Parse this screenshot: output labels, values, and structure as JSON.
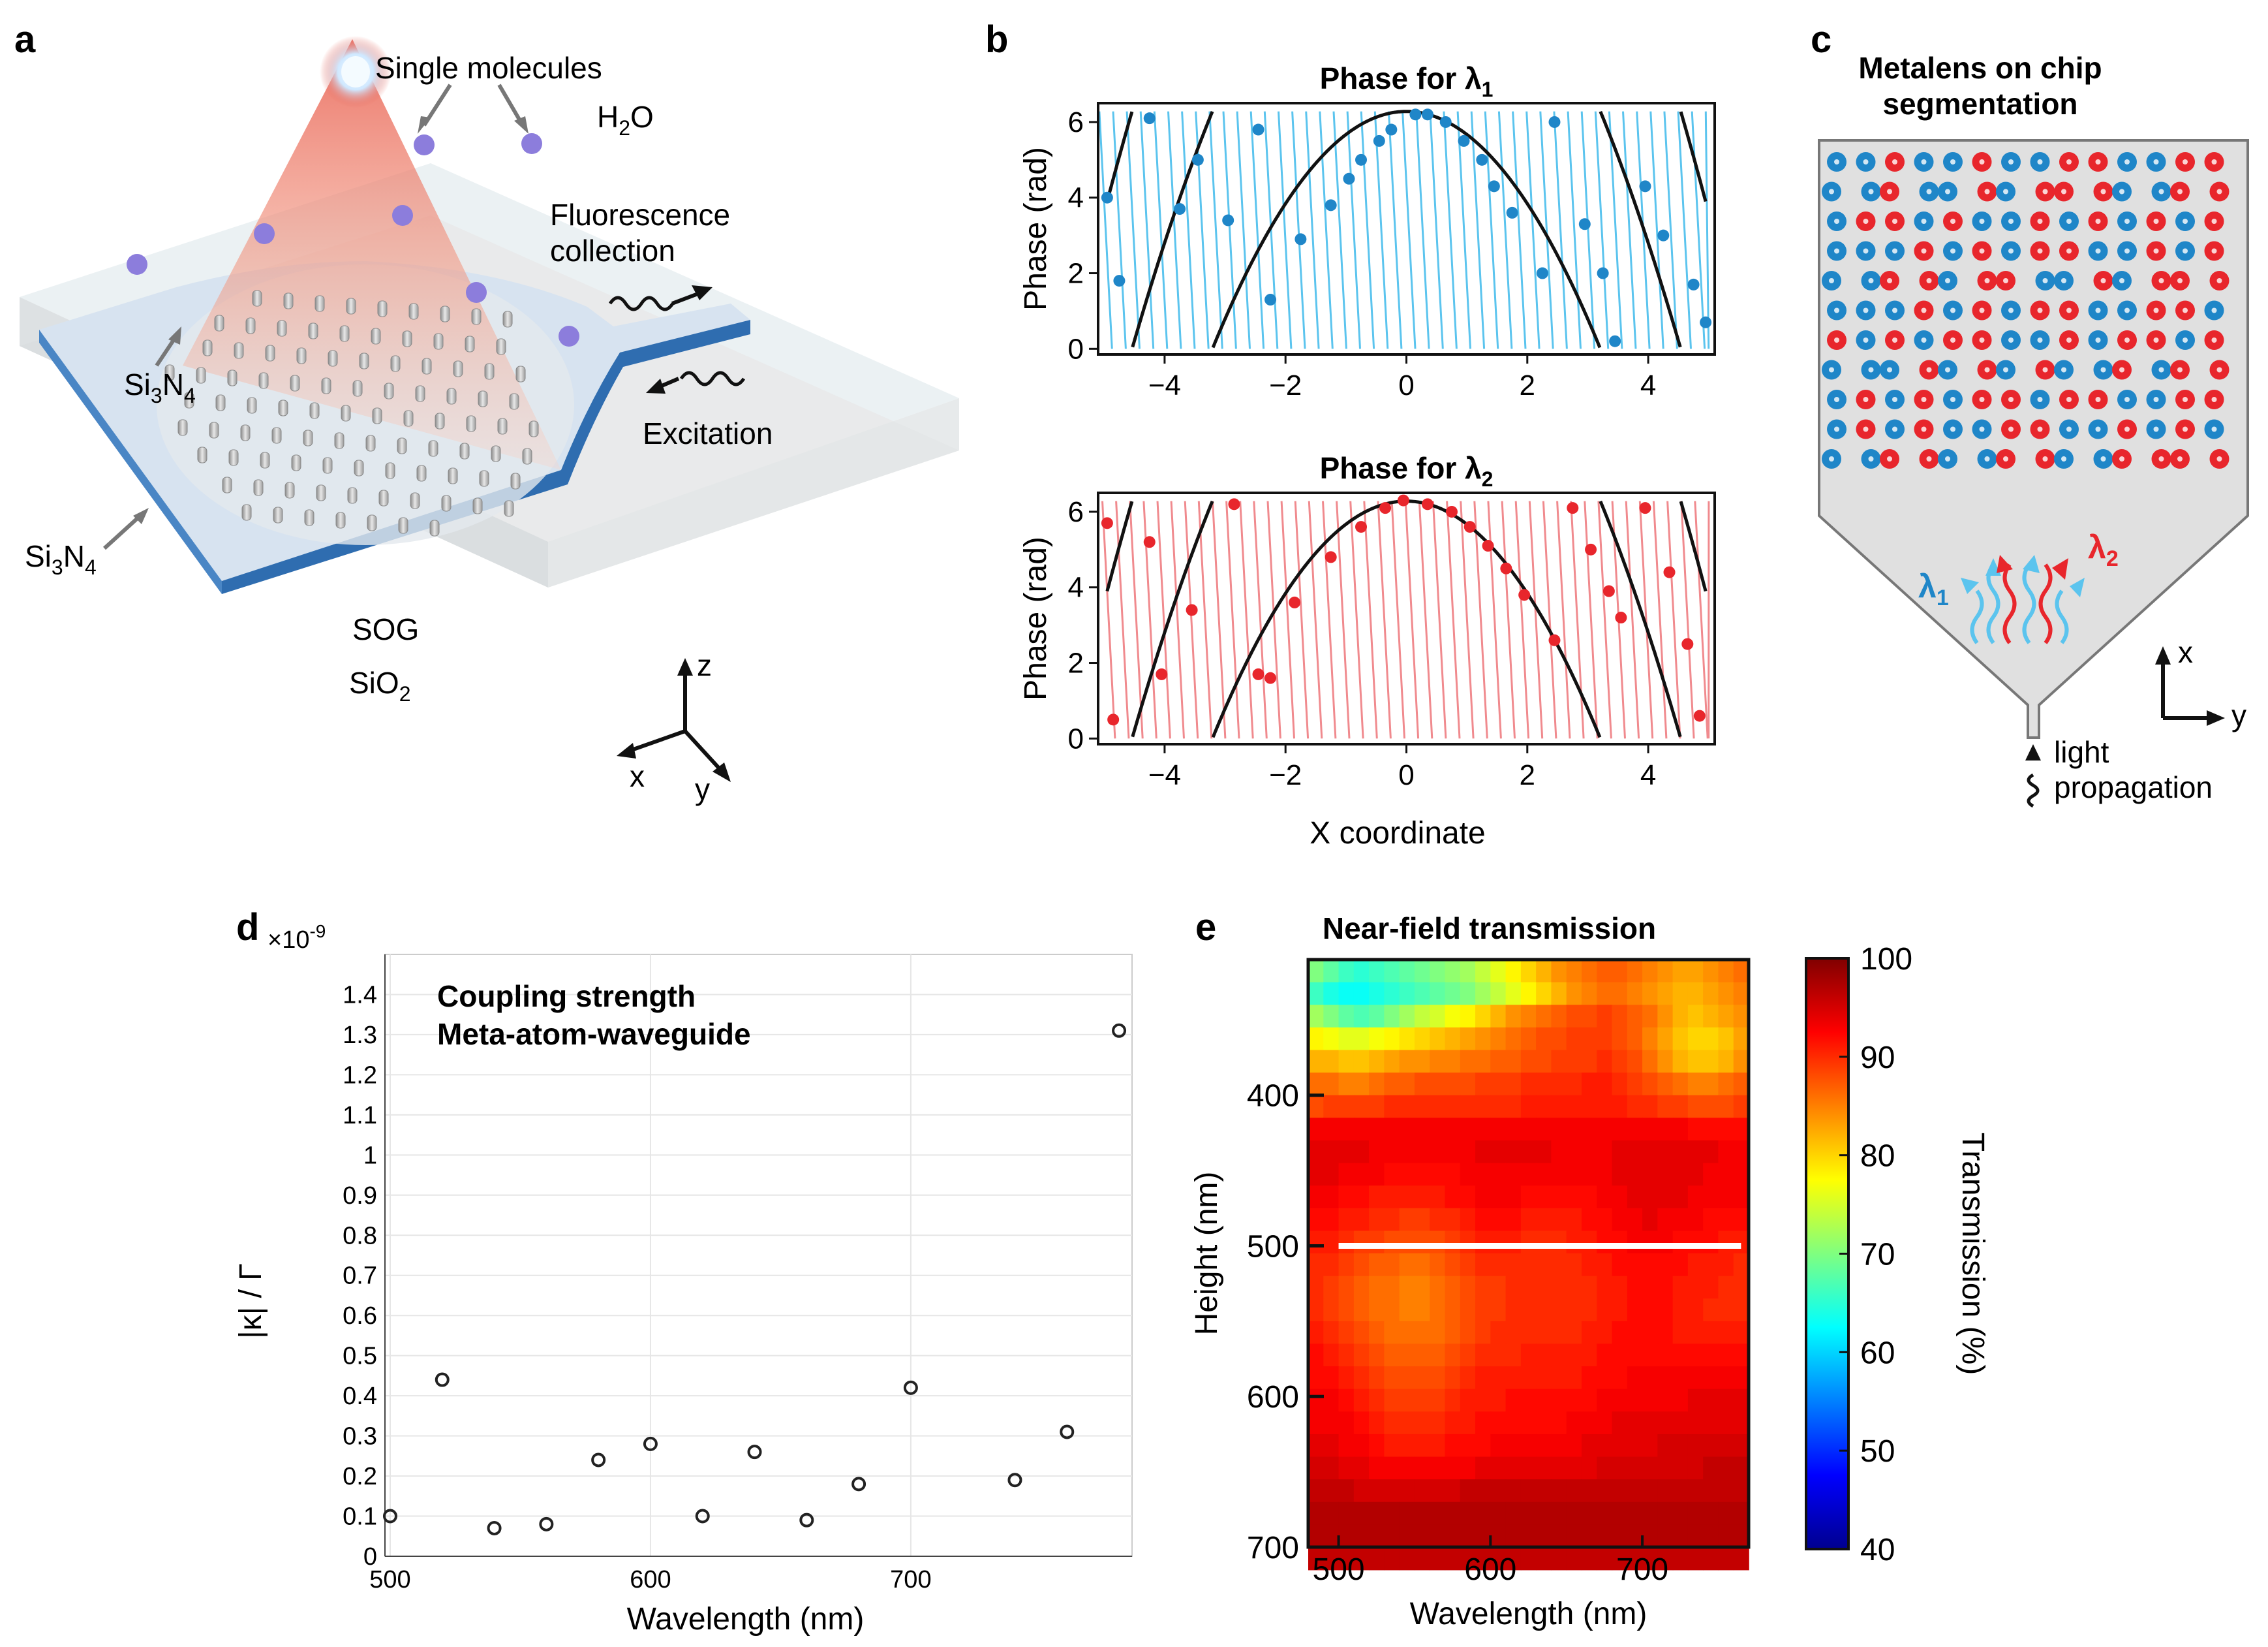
{
  "panels": {
    "a": {
      "label": "a",
      "single_molecules": "Single molecules",
      "h2o": "H2O",
      "fluorescence": [
        "Fluorescence",
        "collection"
      ],
      "excitation": "Excitation",
      "si3n4_pillars": "Si3N4",
      "si3n4_waveguide": "Si3N4",
      "sog": "SOG",
      "sio2": "SiO2",
      "axes": {
        "z": "z",
        "x": "x",
        "y": "y"
      }
    },
    "b": {
      "label": "b",
      "x_label": "X coordinate"
    },
    "c": {
      "label": "c",
      "title": [
        "Metalens on chip",
        "segmentation"
      ],
      "lambda1": "λ1",
      "lambda2": "λ2",
      "axis_x": "x",
      "axis_y": "y",
      "propagation": [
        "light",
        "propagation"
      ]
    },
    "d": {
      "label": "d"
    },
    "e": {
      "label": "e"
    }
  },
  "colors": {
    "blue": "#1f86c8",
    "light_blue": "#5bc4ee",
    "red": "#e8262c",
    "light_red": "#f08a8e",
    "chip_grey": "#e0e0e0",
    "waveguide_blue": "#3d7fc0"
  },
  "chart_data": [
    {
      "type": "line",
      "id": "b-top",
      "title": "Phase for λ1",
      "xlabel": "",
      "ylabel": "Phase (rad)",
      "xlim": [
        -5.1,
        5.1
      ],
      "ylim": [
        -0.15,
        6.5
      ],
      "xticks": [
        -4,
        -2,
        0,
        2,
        4
      ],
      "yticks": [
        0,
        2,
        4,
        6
      ],
      "series": [
        {
          "role": "target",
          "values_desc": "wrapped parabolic phase",
          "zero_crossings": [
            -4.95,
            -4.25,
            -3.4,
            -2.45,
            2.45,
            3.4,
            4.25,
            4.95
          ]
        },
        {
          "role": "dots",
          "x": [
            -4.95,
            -4.75,
            -4.25,
            -3.75,
            -3.45,
            -2.95,
            -2.45,
            -2.25,
            -1.75,
            -1.25,
            -0.95,
            -0.75,
            -0.45,
            -0.25,
            0.15,
            0.35,
            0.65,
            0.95,
            1.25,
            1.45,
            1.75,
            2.25,
            2.45,
            2.95,
            3.25,
            3.45,
            3.95,
            4.25,
            4.75,
            4.95
          ],
          "y": [
            4.0,
            1.8,
            6.1,
            3.7,
            5.0,
            3.4,
            5.8,
            1.3,
            2.9,
            3.8,
            4.5,
            5.0,
            5.5,
            5.8,
            6.2,
            6.2,
            6.0,
            5.5,
            5.0,
            4.3,
            3.6,
            2.0,
            6.0,
            3.3,
            2.0,
            0.2,
            4.3,
            3.0,
            1.7,
            0.7
          ]
        }
      ]
    },
    {
      "type": "line",
      "id": "b-bottom",
      "title": "Phase for λ2",
      "xlabel": "X coordinate",
      "ylabel": "Phase (rad)",
      "xlim": [
        -5.1,
        5.1
      ],
      "ylim": [
        -0.15,
        6.5
      ],
      "xticks": [
        -4,
        -2,
        0,
        2,
        4
      ],
      "yticks": [
        0,
        2,
        4,
        6
      ],
      "series": [
        {
          "role": "dots",
          "x": [
            -4.95,
            -4.85,
            -4.25,
            -4.05,
            -3.55,
            -2.85,
            -2.45,
            -2.25,
            -1.85,
            -1.25,
            -0.75,
            -0.35,
            -0.05,
            0.35,
            0.75,
            1.05,
            1.35,
            1.65,
            1.95,
            2.45,
            2.75,
            3.05,
            3.35,
            3.55,
            3.95,
            4.35,
            4.65,
            4.85
          ],
          "y": [
            5.7,
            0.5,
            5.2,
            1.7,
            3.4,
            6.2,
            1.7,
            1.6,
            3.6,
            4.8,
            5.6,
            6.1,
            6.3,
            6.2,
            6.0,
            5.6,
            5.1,
            4.5,
            3.8,
            2.6,
            6.1,
            5.0,
            3.9,
            3.2,
            6.1,
            4.4,
            2.5,
            0.6
          ]
        }
      ]
    },
    {
      "type": "scatter",
      "id": "d",
      "title": "Coupling strength\nMeta-atom-waveguide",
      "xlabel": "Wavelength (nm)",
      "ylabel": "|κ| / Γ",
      "multiplier": "×10^-9",
      "xlim": [
        498,
        785
      ],
      "ylim": [
        0,
        1.5
      ],
      "xticks": [
        500,
        600,
        700
      ],
      "yticks": [
        0,
        0.1,
        0.2,
        0.3,
        0.4,
        0.5,
        0.6,
        0.7,
        0.8,
        0.9,
        1,
        1.1,
        1.2,
        1.3,
        1.4
      ],
      "x": [
        500,
        520,
        540,
        560,
        580,
        600,
        620,
        640,
        660,
        680,
        700,
        740,
        760,
        780
      ],
      "y": [
        0.1,
        0.44,
        0.07,
        0.08,
        0.24,
        0.28,
        0.1,
        0.26,
        0.09,
        0.18,
        0.42,
        0.19,
        0.31,
        1.31
      ],
      "grid": true
    },
    {
      "type": "heatmap",
      "id": "e",
      "title": "Near-field transmission",
      "xlabel": "Wavelength (nm)",
      "ylabel": "Height (nm)",
      "colorbar_label": "Transmission (%)",
      "colorbar_range": [
        40,
        100
      ],
      "colorbar_ticks": [
        40,
        50,
        60,
        70,
        80,
        90,
        100
      ],
      "xlim": [
        480,
        770
      ],
      "ylim": [
        700,
        310
      ],
      "xticks": [
        500,
        600,
        700
      ],
      "yticks": [
        400,
        500,
        600,
        700
      ],
      "marker_line_height": 500,
      "rows_height_start": 310,
      "row_step": 15,
      "columns_wavelength_start": 480,
      "column_step": 10,
      "z_rows": [
        [
          70,
          68,
          66,
          65,
          66,
          67,
          68,
          69,
          70,
          71,
          72,
          74,
          76,
          78,
          80,
          82,
          84,
          85,
          86,
          87,
          87,
          86,
          85,
          84,
          83,
          83,
          84,
          85,
          86
        ],
        [
          66,
          64,
          63,
          63,
          64,
          65,
          66,
          67,
          68,
          69,
          70,
          72,
          74,
          76,
          78,
          80,
          82,
          84,
          85,
          86,
          86,
          85,
          84,
          83,
          82,
          82,
          83,
          84,
          85
        ],
        [
          72,
          70,
          68,
          67,
          68,
          70,
          72,
          74,
          75,
          77,
          78,
          80,
          82,
          84,
          85,
          86,
          87,
          88,
          88,
          89,
          88,
          87,
          86,
          84,
          82,
          81,
          82,
          83,
          84
        ],
        [
          78,
          77,
          76,
          76,
          77,
          78,
          79,
          80,
          81,
          82,
          83,
          84,
          85,
          86,
          87,
          88,
          88,
          89,
          89,
          89,
          88,
          87,
          85,
          83,
          81,
          80,
          80,
          81,
          83
        ],
        [
          82,
          82,
          81,
          81,
          82,
          83,
          84,
          84,
          85,
          85,
          86,
          86,
          87,
          87,
          88,
          88,
          89,
          89,
          89,
          90,
          89,
          88,
          86,
          84,
          82,
          81,
          81,
          82,
          84
        ],
        [
          86,
          86,
          85,
          85,
          86,
          87,
          87,
          88,
          88,
          88,
          88,
          89,
          89,
          89,
          90,
          90,
          90,
          90,
          91,
          91,
          90,
          89,
          88,
          87,
          86,
          85,
          85,
          86,
          87
        ],
        [
          88,
          89,
          89,
          89,
          89,
          90,
          90,
          90,
          90,
          90,
          90,
          90,
          90,
          90,
          91,
          91,
          91,
          91,
          91,
          91,
          91,
          90,
          90,
          89,
          89,
          88,
          88,
          88,
          89
        ],
        [
          93,
          93,
          93,
          93,
          93,
          93,
          93,
          93,
          93,
          93,
          93,
          93,
          93,
          93,
          93,
          93,
          93,
          93,
          93,
          93,
          93,
          93,
          93,
          93,
          93,
          92,
          92,
          92,
          92
        ],
        [
          94,
          94,
          94,
          94,
          93,
          93,
          93,
          93,
          93,
          93,
          93,
          94,
          94,
          94,
          94,
          94,
          93,
          93,
          93,
          93,
          94,
          94,
          94,
          94,
          94,
          94,
          94,
          93,
          93
        ],
        [
          94,
          94,
          93,
          93,
          93,
          92,
          92,
          92,
          92,
          92,
          93,
          93,
          93,
          93,
          93,
          93,
          93,
          93,
          93,
          93,
          94,
          94,
          94,
          94,
          94,
          94,
          93,
          93,
          93
        ],
        [
          93,
          93,
          92,
          92,
          91,
          91,
          91,
          91,
          91,
          92,
          92,
          93,
          93,
          93,
          92,
          92,
          92,
          92,
          92,
          93,
          93,
          94,
          94,
          94,
          94,
          93,
          93,
          93,
          93
        ],
        [
          92,
          92,
          91,
          91,
          90,
          90,
          89,
          89,
          90,
          90,
          91,
          92,
          92,
          92,
          91,
          91,
          91,
          91,
          92,
          92,
          93,
          93,
          94,
          93,
          93,
          93,
          92,
          92,
          92
        ],
        [
          91,
          91,
          90,
          89,
          89,
          88,
          88,
          88,
          88,
          89,
          90,
          91,
          91,
          91,
          90,
          90,
          90,
          91,
          91,
          92,
          92,
          93,
          93,
          93,
          92,
          92,
          92,
          91,
          91
        ],
        [
          90,
          90,
          89,
          88,
          87,
          87,
          86,
          86,
          87,
          88,
          89,
          90,
          90,
          90,
          90,
          90,
          90,
          90,
          91,
          91,
          92,
          92,
          92,
          92,
          92,
          91,
          91,
          91,
          90
        ],
        [
          90,
          89,
          88,
          87,
          86,
          86,
          85,
          85,
          86,
          87,
          88,
          89,
          89,
          90,
          90,
          90,
          90,
          90,
          90,
          91,
          91,
          92,
          92,
          92,
          91,
          91,
          91,
          90,
          90
        ],
        [
          90,
          89,
          88,
          87,
          86,
          86,
          85,
          85,
          86,
          87,
          88,
          89,
          89,
          90,
          90,
          90,
          90,
          90,
          90,
          91,
          91,
          92,
          92,
          92,
          91,
          91,
          90,
          90,
          90
        ],
        [
          91,
          90,
          89,
          88,
          87,
          86,
          86,
          86,
          86,
          87,
          88,
          89,
          90,
          90,
          90,
          90,
          90,
          90,
          91,
          91,
          92,
          92,
          92,
          92,
          91,
          91,
          91,
          91,
          91
        ],
        [
          92,
          91,
          90,
          89,
          88,
          87,
          87,
          87,
          87,
          88,
          89,
          90,
          90,
          90,
          91,
          91,
          91,
          91,
          91,
          92,
          92,
          92,
          92,
          92,
          92,
          92,
          92,
          92,
          92
        ],
        [
          92,
          92,
          91,
          90,
          89,
          88,
          88,
          88,
          88,
          89,
          90,
          91,
          91,
          91,
          91,
          91,
          91,
          91,
          92,
          92,
          92,
          93,
          93,
          93,
          93,
          93,
          93,
          93,
          93
        ],
        [
          93,
          93,
          92,
          91,
          90,
          89,
          89,
          89,
          89,
          90,
          91,
          91,
          91,
          92,
          92,
          92,
          92,
          92,
          92,
          93,
          93,
          93,
          93,
          93,
          93,
          94,
          94,
          94,
          94
        ],
        [
          93,
          93,
          93,
          92,
          91,
          90,
          90,
          90,
          90,
          91,
          91,
          92,
          92,
          92,
          92,
          92,
          92,
          93,
          93,
          93,
          94,
          94,
          94,
          94,
          94,
          94,
          94,
          94,
          94
        ],
        [
          94,
          94,
          93,
          93,
          92,
          91,
          91,
          91,
          91,
          92,
          92,
          92,
          93,
          93,
          93,
          93,
          93,
          93,
          94,
          94,
          94,
          94,
          94,
          95,
          95,
          95,
          95,
          95,
          95
        ],
        [
          95,
          95,
          94,
          94,
          93,
          93,
          93,
          93,
          93,
          93,
          93,
          94,
          94,
          94,
          94,
          94,
          94,
          94,
          94,
          95,
          95,
          95,
          95,
          95,
          95,
          95,
          96,
          96,
          96
        ],
        [
          96,
          96,
          96,
          95,
          95,
          95,
          95,
          95,
          95,
          95,
          96,
          96,
          96,
          96,
          96,
          96,
          96,
          96,
          96,
          96,
          96,
          96,
          96,
          96,
          96,
          96,
          96,
          96,
          96
        ],
        [
          97,
          97,
          97,
          97,
          97,
          97,
          97,
          97,
          97,
          97,
          97,
          97,
          97,
          97,
          97,
          97,
          97,
          97,
          97,
          97,
          97,
          97,
          97,
          97,
          97,
          97,
          97,
          97,
          97
        ],
        [
          97,
          97,
          97,
          97,
          97,
          97,
          97,
          97,
          97,
          97,
          97,
          97,
          97,
          97,
          97,
          97,
          97,
          97,
          97,
          97,
          97,
          97,
          97,
          97,
          97,
          97,
          97,
          97,
          97
        ],
        [
          96,
          96,
          96,
          96,
          96,
          96,
          96,
          96,
          96,
          96,
          96,
          96,
          96,
          96,
          96,
          96,
          96,
          96,
          96,
          96,
          96,
          96,
          96,
          96,
          96,
          96,
          96,
          96,
          96
        ]
      ]
    }
  ]
}
